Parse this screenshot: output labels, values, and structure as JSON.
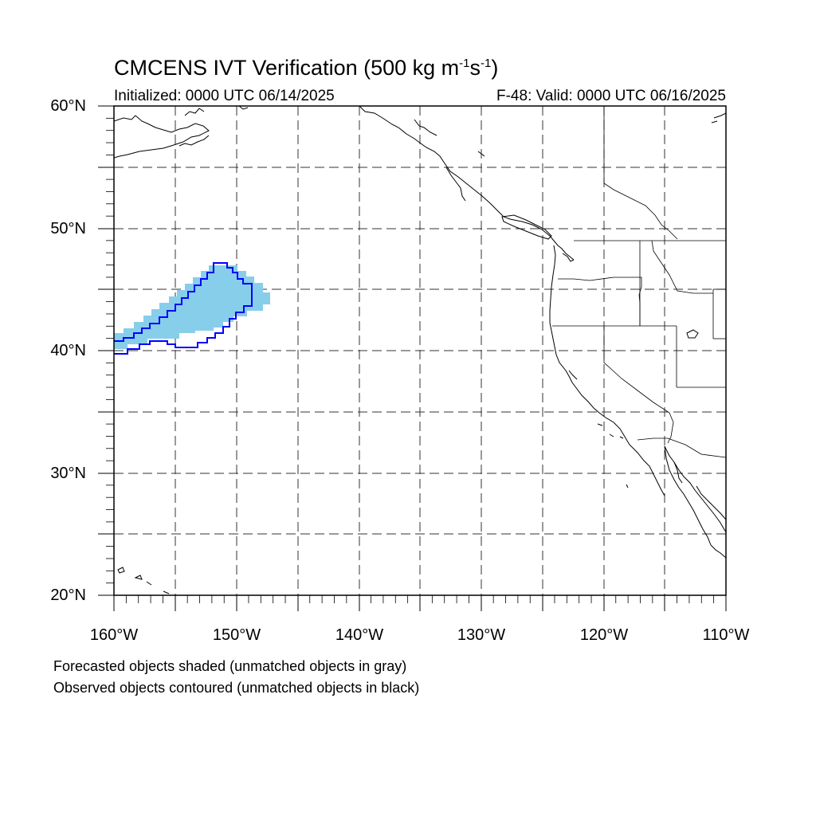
{
  "title": {
    "main": "CMCENS IVT Verification (500 kg m",
    "exp1": "-1",
    "mid": "s",
    "exp2": "-1",
    "end": ")"
  },
  "init_label": "Initialized: 0000 UTC 06/14/2025",
  "valid_label": "F-48: Valid: 0000 UTC 06/16/2025",
  "lat_labels": [
    "60°N",
    "50°N",
    "40°N",
    "30°N",
    "20°N"
  ],
  "lon_labels": [
    "160°W",
    "150°W",
    "140°W",
    "130°W",
    "120°W",
    "110°W"
  ],
  "footnotes": [
    "Forecasted objects shaded (unmatched objects in gray)",
    "Observed objects contoured (unmatched objects in black)"
  ],
  "map": {
    "extent": {
      "lon_min": -160,
      "lon_max": -110,
      "lat_min": 20,
      "lat_max": 60
    },
    "forecast_color": "#87ceeb",
    "observed_color": "#0000ff",
    "coast_color": "#000000"
  },
  "map_layers": [
    "grid-lines",
    "coastline",
    "state-borders",
    "forecast-object",
    "observed-contour"
  ]
}
